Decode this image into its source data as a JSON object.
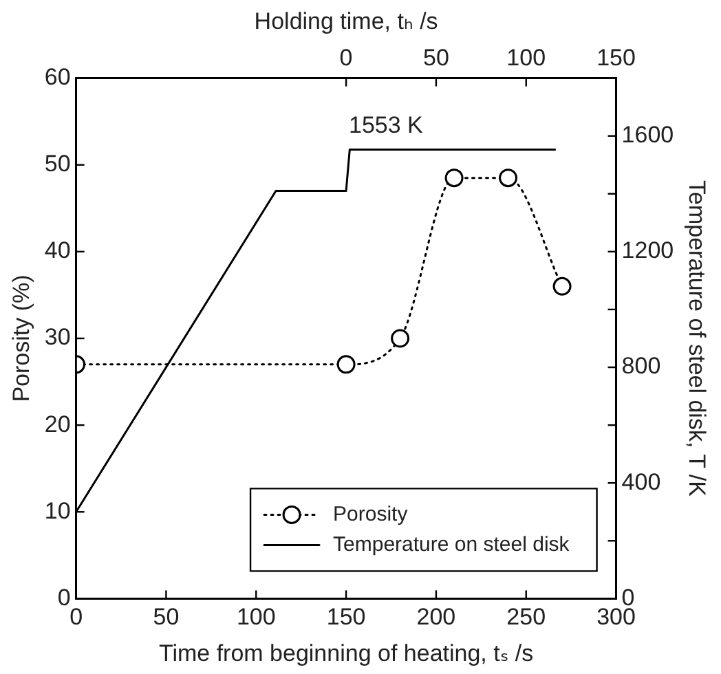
{
  "chart_data": {
    "type": "line",
    "xlabel": "Time from beginning of heating, tₛ /s",
    "x2label": "Holding time, tₕ /s",
    "ylabel": "Porosity (%)",
    "y2label": "Temperature of steel disk, T /K",
    "xlim": [
      0,
      300
    ],
    "xticks": [
      0,
      50,
      100,
      150,
      200,
      250,
      300
    ],
    "x2lim": [
      -150,
      150
    ],
    "x2ticks": [
      0,
      50,
      100,
      150
    ],
    "ylim": [
      0,
      60
    ],
    "yticks": [
      0,
      10,
      20,
      30,
      40,
      50,
      60
    ],
    "y2lim": [
      0,
      1800
    ],
    "y2ticks": [
      0,
      {
        "value": 200,
        "label": null
      },
      400,
      {
        "value": 600,
        "label": null
      },
      800,
      {
        "value": 1000,
        "label": null
      },
      1200,
      {
        "value": 1400,
        "label": null
      },
      1600
    ],
    "x": [
      0,
      150,
      180,
      210,
      240,
      270
    ],
    "series": [
      {
        "name": "Porosity",
        "type": "line",
        "color": "#000000",
        "values": [
          27,
          27,
          30,
          48.5,
          48.5,
          36
        ],
        "marker": "circle",
        "line_style": "dotted"
      },
      {
        "name": "Temperature on steel disk",
        "type": "line",
        "axis": "y2",
        "color": "#000000",
        "x": [
          0,
          111,
          150,
          152,
          266
        ],
        "values": [
          300,
          1410,
          1410,
          1553,
          1553
        ],
        "marker": "none",
        "line_style": "solid"
      }
    ],
    "annotations": [
      "1553 K"
    ],
    "grid": false,
    "legend": "bottom right"
  }
}
